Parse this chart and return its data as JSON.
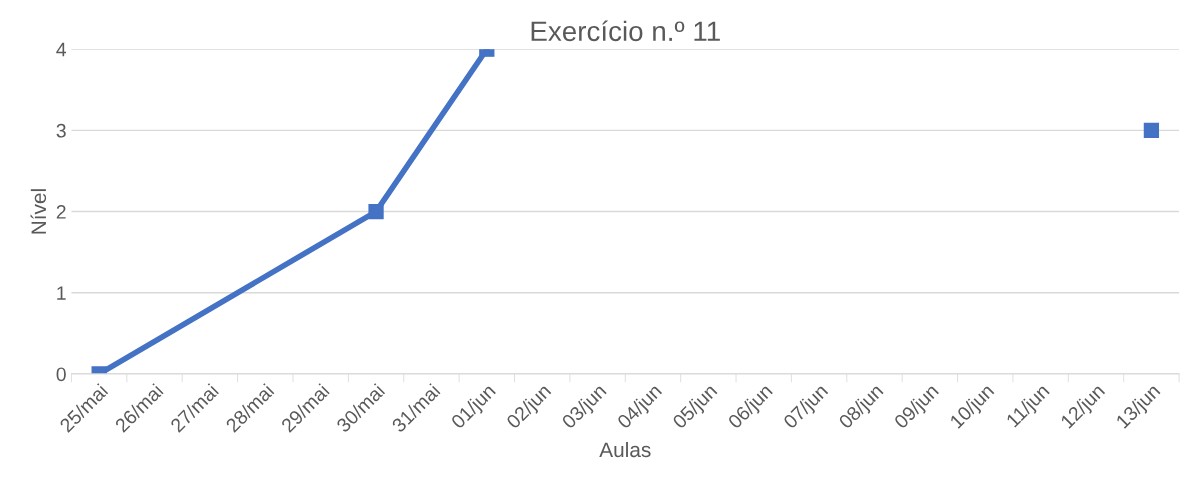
{
  "chart_data": {
    "type": "line",
    "title": "Exercício n.º 11",
    "xlabel": "Aulas",
    "ylabel": "Nível",
    "categories": [
      "25/mai",
      "26/mai",
      "27/mai",
      "28/mai",
      "29/mai",
      "30/mai",
      "31/mai",
      "01/jun",
      "02/jun",
      "03/jun",
      "04/jun",
      "05/jun",
      "06/jun",
      "07/jun",
      "08/jun",
      "09/jun",
      "10/jun",
      "11/jun",
      "12/jun",
      "13/jun"
    ],
    "series": [
      {
        "color": "#4472c4",
        "values": [
          0,
          null,
          null,
          null,
          null,
          2,
          null,
          4,
          null,
          null,
          null,
          null,
          null,
          null,
          null,
          null,
          null,
          null,
          null,
          null
        ]
      },
      {
        "color": "#4472c4",
        "values": [
          null,
          null,
          null,
          null,
          null,
          null,
          null,
          null,
          null,
          null,
          null,
          null,
          null,
          null,
          null,
          null,
          null,
          null,
          null,
          3
        ]
      }
    ],
    "ylim": [
      0,
      4
    ],
    "yticks": [
      0,
      1,
      2,
      3,
      4
    ],
    "grid": "y",
    "legend": false,
    "marker": "square",
    "line_style": "solid"
  }
}
